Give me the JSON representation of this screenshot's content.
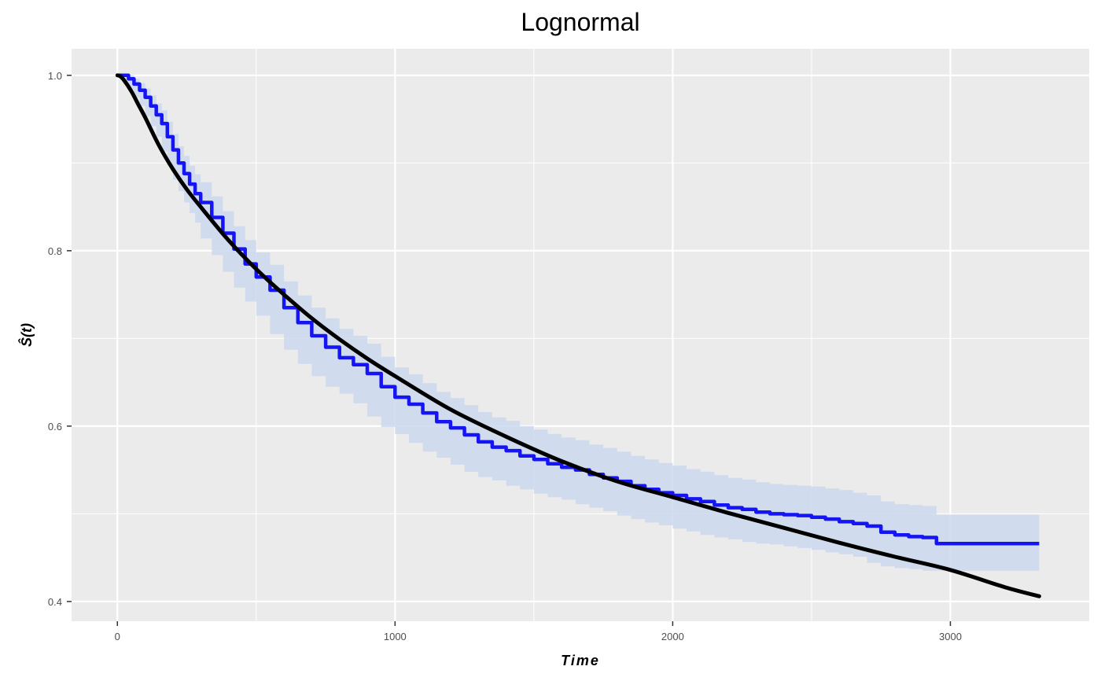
{
  "chart_data": {
    "type": "line",
    "title": "Lognormal",
    "xlabel": "Time",
    "ylabel": "Ŝ(t)",
    "xlim": [
      -165,
      3500
    ],
    "ylim": [
      0.3775,
      1.0303
    ],
    "x_ticks": [
      0,
      1000,
      2000,
      3000
    ],
    "y_ticks": [
      0.4,
      0.6,
      0.8,
      1.0
    ],
    "x_tick_labels": [
      "0",
      "1000",
      "2000",
      "3000"
    ],
    "y_tick_labels": [
      "0.4",
      "0.6",
      "0.8",
      "1.0"
    ],
    "grid": true,
    "colors": {
      "panel": "#ebebeb",
      "grid": "#ffffff",
      "km": "#1414f5",
      "ci": "#cdd8ee",
      "fit": "#000000"
    },
    "series": [
      {
        "kind": "step",
        "x": [
          0,
          20,
          40,
          60,
          80,
          100,
          120,
          140,
          160,
          180,
          200,
          220,
          240,
          260,
          280,
          300,
          340,
          380,
          420,
          460,
          500,
          550,
          600,
          650,
          700,
          750,
          800,
          850,
          900,
          950,
          1000,
          1050,
          1100,
          1150,
          1200,
          1250,
          1300,
          1350,
          1400,
          1450,
          1500,
          1550,
          1600,
          1650,
          1700,
          1750,
          1800,
          1850,
          1900,
          1950,
          2000,
          2050,
          2100,
          2150,
          2200,
          2250,
          2300,
          2350,
          2400,
          2450,
          2500,
          2550,
          2600,
          2650,
          2700,
          2750,
          2800,
          2850,
          2900,
          2950,
          3000,
          3050,
          3100,
          3150,
          3200,
          3250,
          3320
        ],
        "y": [
          1.0,
          1.0,
          0.996,
          0.99,
          0.983,
          0.975,
          0.965,
          0.955,
          0.945,
          0.93,
          0.915,
          0.9,
          0.888,
          0.876,
          0.865,
          0.855,
          0.838,
          0.82,
          0.802,
          0.785,
          0.77,
          0.755,
          0.735,
          0.718,
          0.703,
          0.69,
          0.678,
          0.67,
          0.66,
          0.645,
          0.633,
          0.625,
          0.615,
          0.605,
          0.598,
          0.59,
          0.582,
          0.576,
          0.572,
          0.566,
          0.562,
          0.557,
          0.553,
          0.55,
          0.545,
          0.541,
          0.537,
          0.532,
          0.528,
          0.524,
          0.521,
          0.517,
          0.514,
          0.51,
          0.507,
          0.505,
          0.502,
          0.5,
          0.499,
          0.498,
          0.496,
          0.494,
          0.491,
          0.489,
          0.486,
          0.479,
          0.476,
          0.474,
          0.473,
          0.466,
          0.466,
          0.466,
          0.466,
          0.466,
          0.466,
          0.466,
          0.466
        ],
        "lower": [
          1.0,
          1.0,
          0.992,
          0.984,
          0.975,
          0.965,
          0.953,
          0.942,
          0.93,
          0.913,
          0.897,
          0.881,
          0.868,
          0.855,
          0.843,
          0.832,
          0.814,
          0.795,
          0.776,
          0.758,
          0.742,
          0.726,
          0.705,
          0.687,
          0.671,
          0.657,
          0.645,
          0.637,
          0.626,
          0.611,
          0.599,
          0.591,
          0.581,
          0.571,
          0.564,
          0.556,
          0.548,
          0.542,
          0.538,
          0.532,
          0.528,
          0.523,
          0.519,
          0.516,
          0.511,
          0.507,
          0.503,
          0.498,
          0.494,
          0.49,
          0.487,
          0.483,
          0.48,
          0.476,
          0.473,
          0.471,
          0.468,
          0.466,
          0.465,
          0.463,
          0.461,
          0.459,
          0.456,
          0.454,
          0.451,
          0.444,
          0.44,
          0.438,
          0.437,
          0.435,
          0.435,
          0.435,
          0.435,
          0.435,
          0.435,
          0.435,
          0.435
        ],
        "upper": [
          1.0,
          1.0,
          1.0,
          0.996,
          0.991,
          0.985,
          0.977,
          0.968,
          0.96,
          0.947,
          0.933,
          0.919,
          0.908,
          0.897,
          0.887,
          0.878,
          0.862,
          0.845,
          0.828,
          0.812,
          0.798,
          0.784,
          0.765,
          0.749,
          0.735,
          0.723,
          0.711,
          0.703,
          0.694,
          0.679,
          0.667,
          0.659,
          0.649,
          0.639,
          0.632,
          0.624,
          0.616,
          0.61,
          0.606,
          0.6,
          0.596,
          0.591,
          0.587,
          0.584,
          0.579,
          0.575,
          0.571,
          0.566,
          0.562,
          0.558,
          0.555,
          0.551,
          0.548,
          0.544,
          0.541,
          0.539,
          0.536,
          0.534,
          0.533,
          0.532,
          0.531,
          0.529,
          0.527,
          0.524,
          0.521,
          0.514,
          0.511,
          0.51,
          0.509,
          0.499,
          0.499,
          0.499,
          0.499,
          0.499,
          0.499,
          0.499,
          0.499
        ]
      },
      {
        "kind": "line",
        "x": [
          0,
          10,
          25,
          50,
          75,
          100,
          150,
          200,
          250,
          300,
          400,
          500,
          600,
          700,
          800,
          900,
          1000,
          1200,
          1400,
          1600,
          1800,
          2000,
          2200,
          2400,
          2600,
          2800,
          3000,
          3200,
          3320
        ],
        "y": [
          1.0,
          0.999,
          0.994,
          0.982,
          0.967,
          0.952,
          0.92,
          0.893,
          0.87,
          0.85,
          0.812,
          0.779,
          0.75,
          0.723,
          0.699,
          0.677,
          0.657,
          0.619,
          0.588,
          0.56,
          0.537,
          0.519,
          0.501,
          0.484,
          0.467,
          0.451,
          0.436,
          0.416,
          0.406
        ]
      }
    ]
  }
}
